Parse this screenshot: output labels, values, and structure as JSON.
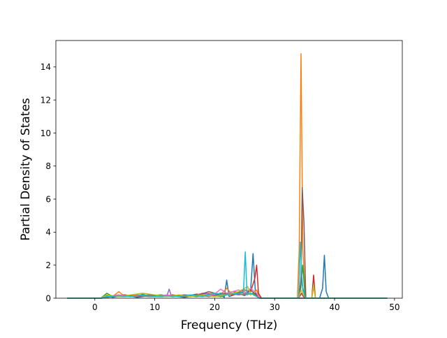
{
  "chart_data": {
    "type": "line",
    "title": "",
    "xlabel": "Frequency (THz)",
    "ylabel": "Partial Density of States",
    "xlim": [
      -6.5,
      51.3
    ],
    "ylim": [
      0,
      15.6
    ],
    "xticks": [
      0,
      10,
      20,
      30,
      40,
      50
    ],
    "yticks": [
      0,
      2,
      4,
      6,
      8,
      10,
      12,
      14
    ],
    "grid": false,
    "legend": "none",
    "baseline_range": [
      -4.6,
      48.8
    ],
    "series": [
      {
        "color": "#1f77b4",
        "points": [
          [
            -4.6,
            0
          ],
          [
            1,
            0
          ],
          [
            2,
            0.15
          ],
          [
            3,
            0.05
          ],
          [
            5,
            0.2
          ],
          [
            7,
            0.05
          ],
          [
            9,
            0.15
          ],
          [
            11,
            0.1
          ],
          [
            13,
            0.15
          ],
          [
            15,
            0.05
          ],
          [
            17,
            0.2
          ],
          [
            19,
            0.3
          ],
          [
            20,
            0.1
          ],
          [
            21,
            0.2
          ],
          [
            21.6,
            0.05
          ],
          [
            22,
            1.1
          ],
          [
            22.4,
            0.1
          ],
          [
            24,
            0.3
          ],
          [
            25,
            0.15
          ],
          [
            26,
            0.5
          ],
          [
            26.4,
            2.7
          ],
          [
            26.8,
            0.3
          ],
          [
            27.5,
            0.05
          ],
          [
            28,
            0
          ],
          [
            34,
            0
          ],
          [
            34.3,
            0.8
          ],
          [
            34.5,
            1.6
          ],
          [
            34.7,
            0.5
          ],
          [
            35.2,
            0
          ],
          [
            37.5,
            0
          ],
          [
            38,
            0.6
          ],
          [
            38.3,
            2.6
          ],
          [
            38.6,
            0.4
          ],
          [
            39,
            0
          ],
          [
            48.8,
            0
          ]
        ]
      },
      {
        "color": "#ff7f0e",
        "points": [
          [
            -4.6,
            0
          ],
          [
            1,
            0
          ],
          [
            2,
            0.2
          ],
          [
            3,
            0.1
          ],
          [
            4,
            0.4
          ],
          [
            5,
            0.1
          ],
          [
            7,
            0.2
          ],
          [
            9,
            0.15
          ],
          [
            11,
            0.2
          ],
          [
            13,
            0.1
          ],
          [
            15,
            0.2
          ],
          [
            17,
            0.1
          ],
          [
            19,
            0.3
          ],
          [
            21,
            0.2
          ],
          [
            22,
            0.6
          ],
          [
            23,
            0.2
          ],
          [
            25,
            0.4
          ],
          [
            26,
            0.2
          ],
          [
            27,
            0.5
          ],
          [
            27.5,
            0
          ],
          [
            33.8,
            0
          ],
          [
            34.1,
            3
          ],
          [
            34.4,
            14.8
          ],
          [
            34.7,
            3
          ],
          [
            35.1,
            0
          ],
          [
            36.2,
            0
          ],
          [
            36.5,
            0.7
          ],
          [
            36.8,
            0
          ],
          [
            48.8,
            0
          ]
        ]
      },
      {
        "color": "#2ca02c",
        "points": [
          [
            -4.6,
            0
          ],
          [
            1,
            0
          ],
          [
            2,
            0.3
          ],
          [
            3,
            0.1
          ],
          [
            5,
            0.15
          ],
          [
            7,
            0.1
          ],
          [
            8,
            0.25
          ],
          [
            9,
            0.1
          ],
          [
            11,
            0.2
          ],
          [
            13,
            0.1
          ],
          [
            15,
            0.15
          ],
          [
            17,
            0.1
          ],
          [
            19,
            0.2
          ],
          [
            21,
            0.1
          ],
          [
            23,
            0.3
          ],
          [
            25,
            0.2
          ],
          [
            26,
            0.3
          ],
          [
            27,
            0.2
          ],
          [
            27.5,
            0
          ],
          [
            34,
            0
          ],
          [
            34.3,
            0.4
          ],
          [
            34.7,
            2
          ],
          [
            35.1,
            0
          ],
          [
            48.8,
            0
          ]
        ]
      },
      {
        "color": "#d62728",
        "points": [
          [
            -4.6,
            0
          ],
          [
            1,
            0
          ],
          [
            3,
            0.1
          ],
          [
            5,
            0.2
          ],
          [
            7,
            0.1
          ],
          [
            9,
            0.15
          ],
          [
            11,
            0.1
          ],
          [
            13,
            0.2
          ],
          [
            15,
            0.1
          ],
          [
            17,
            0.25
          ],
          [
            19,
            0.1
          ],
          [
            21,
            0.3
          ],
          [
            23,
            0.2
          ],
          [
            25,
            0.5
          ],
          [
            26,
            0.4
          ],
          [
            26.7,
            1.2
          ],
          [
            27,
            2
          ],
          [
            27.3,
            0.3
          ],
          [
            27.8,
            0
          ],
          [
            34,
            0
          ],
          [
            34.5,
            0.3
          ],
          [
            34.8,
            0.1
          ],
          [
            35.2,
            0
          ],
          [
            36.2,
            0
          ],
          [
            36.5,
            1.4
          ],
          [
            36.8,
            0
          ],
          [
            48.8,
            0
          ]
        ]
      },
      {
        "color": "#9467bd",
        "points": [
          [
            -4.6,
            0
          ],
          [
            1,
            0
          ],
          [
            2,
            0.1
          ],
          [
            4,
            0.2
          ],
          [
            6,
            0.1
          ],
          [
            8,
            0.2
          ],
          [
            10,
            0.15
          ],
          [
            12,
            0.1
          ],
          [
            12.4,
            0.55
          ],
          [
            12.8,
            0.1
          ],
          [
            14,
            0.2
          ],
          [
            16,
            0.1
          ],
          [
            18,
            0.3
          ],
          [
            20,
            0.2
          ],
          [
            22,
            0.3
          ],
          [
            24,
            0.2
          ],
          [
            26,
            0.3
          ],
          [
            27.5,
            0
          ],
          [
            48.8,
            0
          ]
        ]
      },
      {
        "color": "#8c564b",
        "points": [
          [
            -4.6,
            0
          ],
          [
            1,
            0
          ],
          [
            3,
            0.1
          ],
          [
            5,
            0.15
          ],
          [
            7,
            0.1
          ],
          [
            9,
            0.2
          ],
          [
            11,
            0.1
          ],
          [
            13,
            0.15
          ],
          [
            15,
            0.2
          ],
          [
            17,
            0.15
          ],
          [
            19,
            0.4
          ],
          [
            21,
            0.2
          ],
          [
            23,
            0.4
          ],
          [
            25,
            0.3
          ],
          [
            26,
            0.5
          ],
          [
            27.5,
            0
          ],
          [
            34,
            0
          ],
          [
            34.4,
            1
          ],
          [
            34.6,
            6.7
          ],
          [
            34.9,
            4.5
          ],
          [
            35.2,
            0
          ],
          [
            48.8,
            0
          ]
        ]
      },
      {
        "color": "#e377c2",
        "points": [
          [
            -4.6,
            0
          ],
          [
            1,
            0
          ],
          [
            2,
            0.1
          ],
          [
            4,
            0.2
          ],
          [
            6,
            0.1
          ],
          [
            8,
            0.15
          ],
          [
            10,
            0.1
          ],
          [
            12,
            0.2
          ],
          [
            14,
            0.1
          ],
          [
            16,
            0.2
          ],
          [
            18,
            0.1
          ],
          [
            20,
            0.25
          ],
          [
            21,
            0.55
          ],
          [
            22,
            0.3
          ],
          [
            24,
            0.5
          ],
          [
            25,
            0.3
          ],
          [
            26,
            0.6
          ],
          [
            27,
            0.3
          ],
          [
            27.5,
            0
          ],
          [
            48.8,
            0
          ]
        ]
      },
      {
        "color": "#7f7f7f",
        "points": [
          [
            -4.6,
            0
          ],
          [
            1,
            0
          ],
          [
            3,
            0.1
          ],
          [
            5,
            0.1
          ],
          [
            7,
            0.15
          ],
          [
            9,
            0.1
          ],
          [
            11,
            0.1
          ],
          [
            13,
            0.15
          ],
          [
            15,
            0.1
          ],
          [
            17,
            0.2
          ],
          [
            19,
            0.1
          ],
          [
            21,
            0.2
          ],
          [
            23,
            0.3
          ],
          [
            25,
            0.2
          ],
          [
            26,
            0.3
          ],
          [
            27.5,
            0
          ],
          [
            48.8,
            0
          ]
        ]
      },
      {
        "color": "#bcbd22",
        "points": [
          [
            -4.6,
            0
          ],
          [
            1,
            0
          ],
          [
            2,
            0.2
          ],
          [
            4,
            0.1
          ],
          [
            6,
            0.2
          ],
          [
            8,
            0.3
          ],
          [
            10,
            0.2
          ],
          [
            12,
            0.1
          ],
          [
            14,
            0.2
          ],
          [
            16,
            0.1
          ],
          [
            18,
            0.2
          ],
          [
            20,
            0.1
          ],
          [
            22,
            0.2
          ],
          [
            24,
            0.4
          ],
          [
            25.5,
            0.7
          ],
          [
            26,
            0.3
          ],
          [
            27.5,
            0
          ],
          [
            34,
            0
          ],
          [
            34.4,
            0.5
          ],
          [
            34.8,
            0.2
          ],
          [
            35.2,
            0
          ],
          [
            36.2,
            0
          ],
          [
            36.5,
            0.8
          ],
          [
            36.8,
            0
          ],
          [
            48.8,
            0
          ]
        ]
      },
      {
        "color": "#17becf",
        "points": [
          [
            -4.6,
            0
          ],
          [
            1,
            0
          ],
          [
            2,
            0.1
          ],
          [
            4,
            0.15
          ],
          [
            6,
            0.1
          ],
          [
            8,
            0.2
          ],
          [
            10,
            0.1
          ],
          [
            12,
            0.15
          ],
          [
            14,
            0.1
          ],
          [
            16,
            0.2
          ],
          [
            18,
            0.1
          ],
          [
            20,
            0.3
          ],
          [
            22,
            0.2
          ],
          [
            24,
            0.3
          ],
          [
            24.8,
            0.4
          ],
          [
            25.1,
            2.8
          ],
          [
            25.4,
            0.2
          ],
          [
            26,
            0.3
          ],
          [
            27.5,
            0
          ],
          [
            34,
            0
          ],
          [
            34.3,
            3.4
          ],
          [
            34.6,
            0.8
          ],
          [
            35.1,
            0
          ],
          [
            48.8,
            0
          ]
        ]
      }
    ]
  }
}
